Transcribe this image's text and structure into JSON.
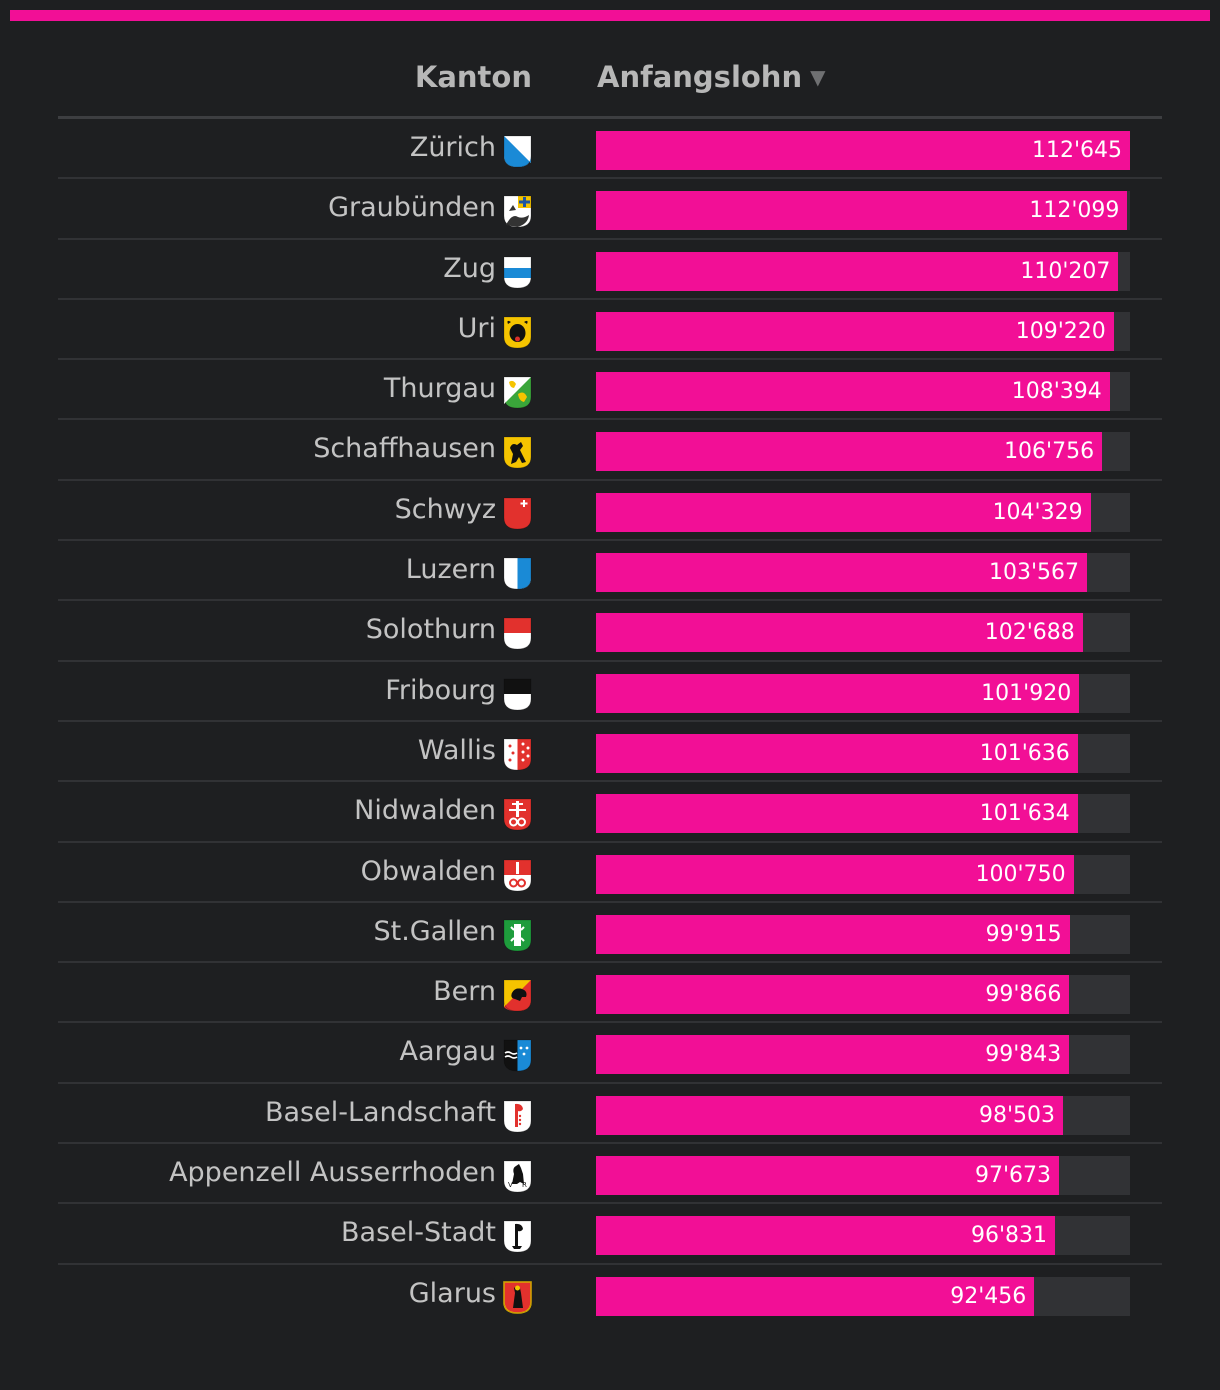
{
  "header": {
    "kanton_label": "Kanton",
    "lohn_label": "Anfangslohn",
    "sort_glyph": "▼"
  },
  "colors": {
    "background": "#1e1f21",
    "accent": "#f20f96",
    "track": "#313235"
  },
  "chart_data": {
    "type": "bar",
    "orientation": "horizontal",
    "title": "",
    "xlabel": "Anfangslohn",
    "ylabel": "Kanton",
    "xlim": [
      0,
      112645
    ],
    "categories": [
      "Zürich",
      "Graubünden",
      "Zug",
      "Uri",
      "Thurgau",
      "Schaffhausen",
      "Schwyz",
      "Luzern",
      "Solothurn",
      "Fribourg",
      "Wallis",
      "Nidwalden",
      "Obwalden",
      "St.Gallen",
      "Bern",
      "Aargau",
      "Basel-Landschaft",
      "Appenzell Ausserrhoden",
      "Basel-Stadt",
      "Glarus"
    ],
    "values": [
      112645,
      112099,
      110207,
      109220,
      108394,
      106756,
      104329,
      103567,
      102688,
      101920,
      101636,
      101634,
      100750,
      99915,
      99866,
      99843,
      98503,
      97673,
      96831,
      92456
    ],
    "value_labels": [
      "112'645",
      "112'099",
      "110'207",
      "109'220",
      "108'394",
      "106'756",
      "104'329",
      "103'567",
      "102'688",
      "101'920",
      "101'636",
      "101'634",
      "100'750",
      "99'915",
      "99'866",
      "99'843",
      "98'503",
      "97'673",
      "96'831",
      "92'456"
    ],
    "flag_icons": [
      "zurich-flag-icon",
      "graubuenden-flag-icon",
      "zug-flag-icon",
      "uri-flag-icon",
      "thurgau-flag-icon",
      "schaffhausen-flag-icon",
      "schwyz-flag-icon",
      "luzern-flag-icon",
      "solothurn-flag-icon",
      "fribourg-flag-icon",
      "wallis-flag-icon",
      "nidwalden-flag-icon",
      "obwalden-flag-icon",
      "stgallen-flag-icon",
      "bern-flag-icon",
      "aargau-flag-icon",
      "basel-landschaft-flag-icon",
      "appenzell-ausserrhoden-flag-icon",
      "basel-stadt-flag-icon",
      "glarus-flag-icon"
    ]
  }
}
